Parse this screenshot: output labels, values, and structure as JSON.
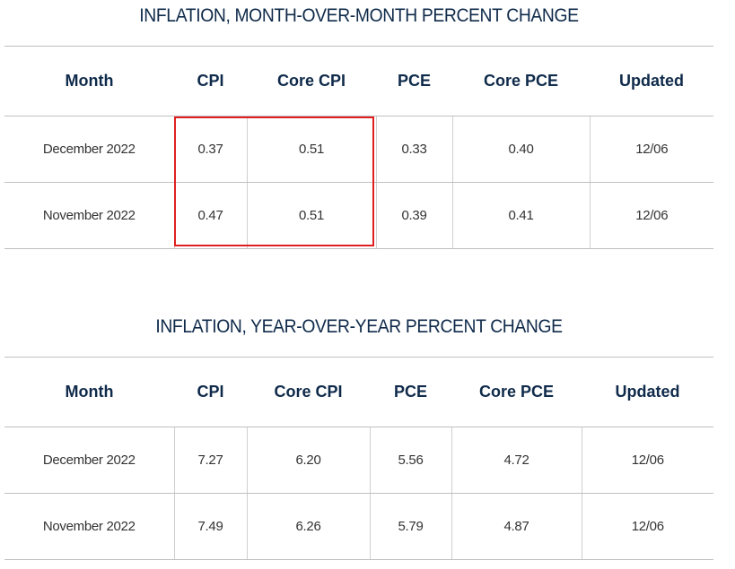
{
  "mom": {
    "title": "INFLATION, MONTH-OVER-MONTH PERCENT CHANGE",
    "headers": [
      "Month",
      "CPI",
      "Core CPI",
      "PCE",
      "Core PCE",
      "Updated"
    ],
    "rows": [
      {
        "month": "December 2022",
        "cpi": "0.37",
        "core_cpi": "0.51",
        "pce": "0.33",
        "core_pce": "0.40",
        "updated": "12/06"
      },
      {
        "month": "November 2022",
        "cpi": "0.47",
        "core_cpi": "0.51",
        "pce": "0.39",
        "core_pce": "0.41",
        "updated": "12/06"
      }
    ]
  },
  "yoy": {
    "title": "INFLATION, YEAR-OVER-YEAR PERCENT CHANGE",
    "headers": [
      "Month",
      "CPI",
      "Core CPI",
      "PCE",
      "Core PCE",
      "Updated"
    ],
    "rows": [
      {
        "month": "December 2022",
        "cpi": "7.27",
        "core_cpi": "6.20",
        "pce": "5.56",
        "core_pce": "4.72",
        "updated": "12/06"
      },
      {
        "month": "November 2022",
        "cpi": "7.49",
        "core_cpi": "6.26",
        "pce": "5.79",
        "core_pce": "4.87",
        "updated": "12/06"
      }
    ]
  },
  "highlight_color": "#e02020",
  "heading_color": "#0f2a4a"
}
